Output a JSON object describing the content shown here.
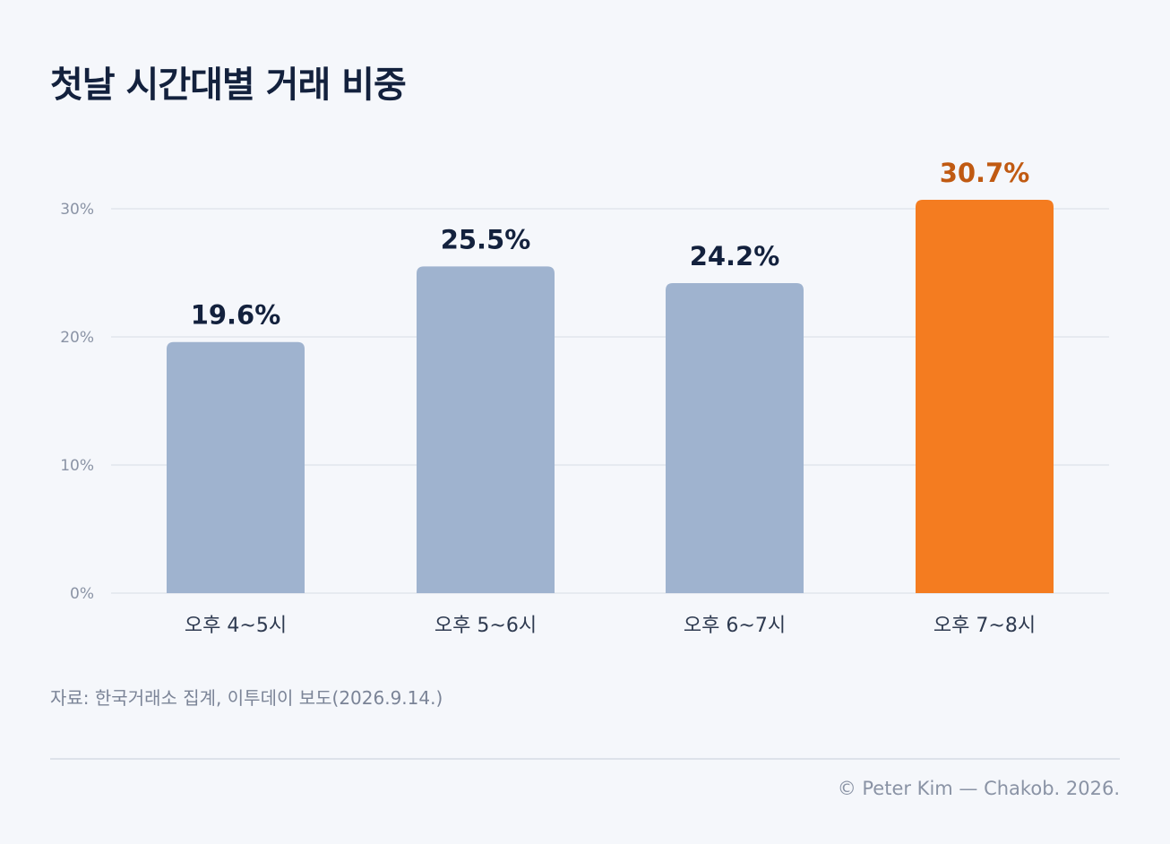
{
  "title": "첫날 시간대별 거래 비중",
  "source": "자료: 한국거래소 집계, 이투데이 보도(2026.9.14.)",
  "credit": "© Peter Kim — Chakob. 2026.",
  "colors": {
    "bar": "#9fb3cf",
    "highlight_bar": "#f47c20",
    "value_label": "#13213d",
    "highlight_label": "#c05a12",
    "tick_label": "#8a93a5",
    "category_label": "#2e3a50",
    "grid": "#e1e5ec"
  },
  "chart_data": {
    "type": "bar",
    "categories": [
      "오후 4~5시",
      "오후 5~6시",
      "오후 6~7시",
      "오후 7~8시"
    ],
    "values": [
      19.6,
      25.5,
      24.2,
      30.7
    ],
    "value_labels": [
      "19.6%",
      "25.5%",
      "24.2%",
      "30.7%"
    ],
    "highlight_index": 3,
    "yticks": [
      0,
      10,
      20,
      30
    ],
    "ytick_labels": [
      "0%",
      "10%",
      "20%",
      "30%"
    ],
    "ylim": [
      0,
      30
    ],
    "grid": true,
    "legend": "none"
  }
}
